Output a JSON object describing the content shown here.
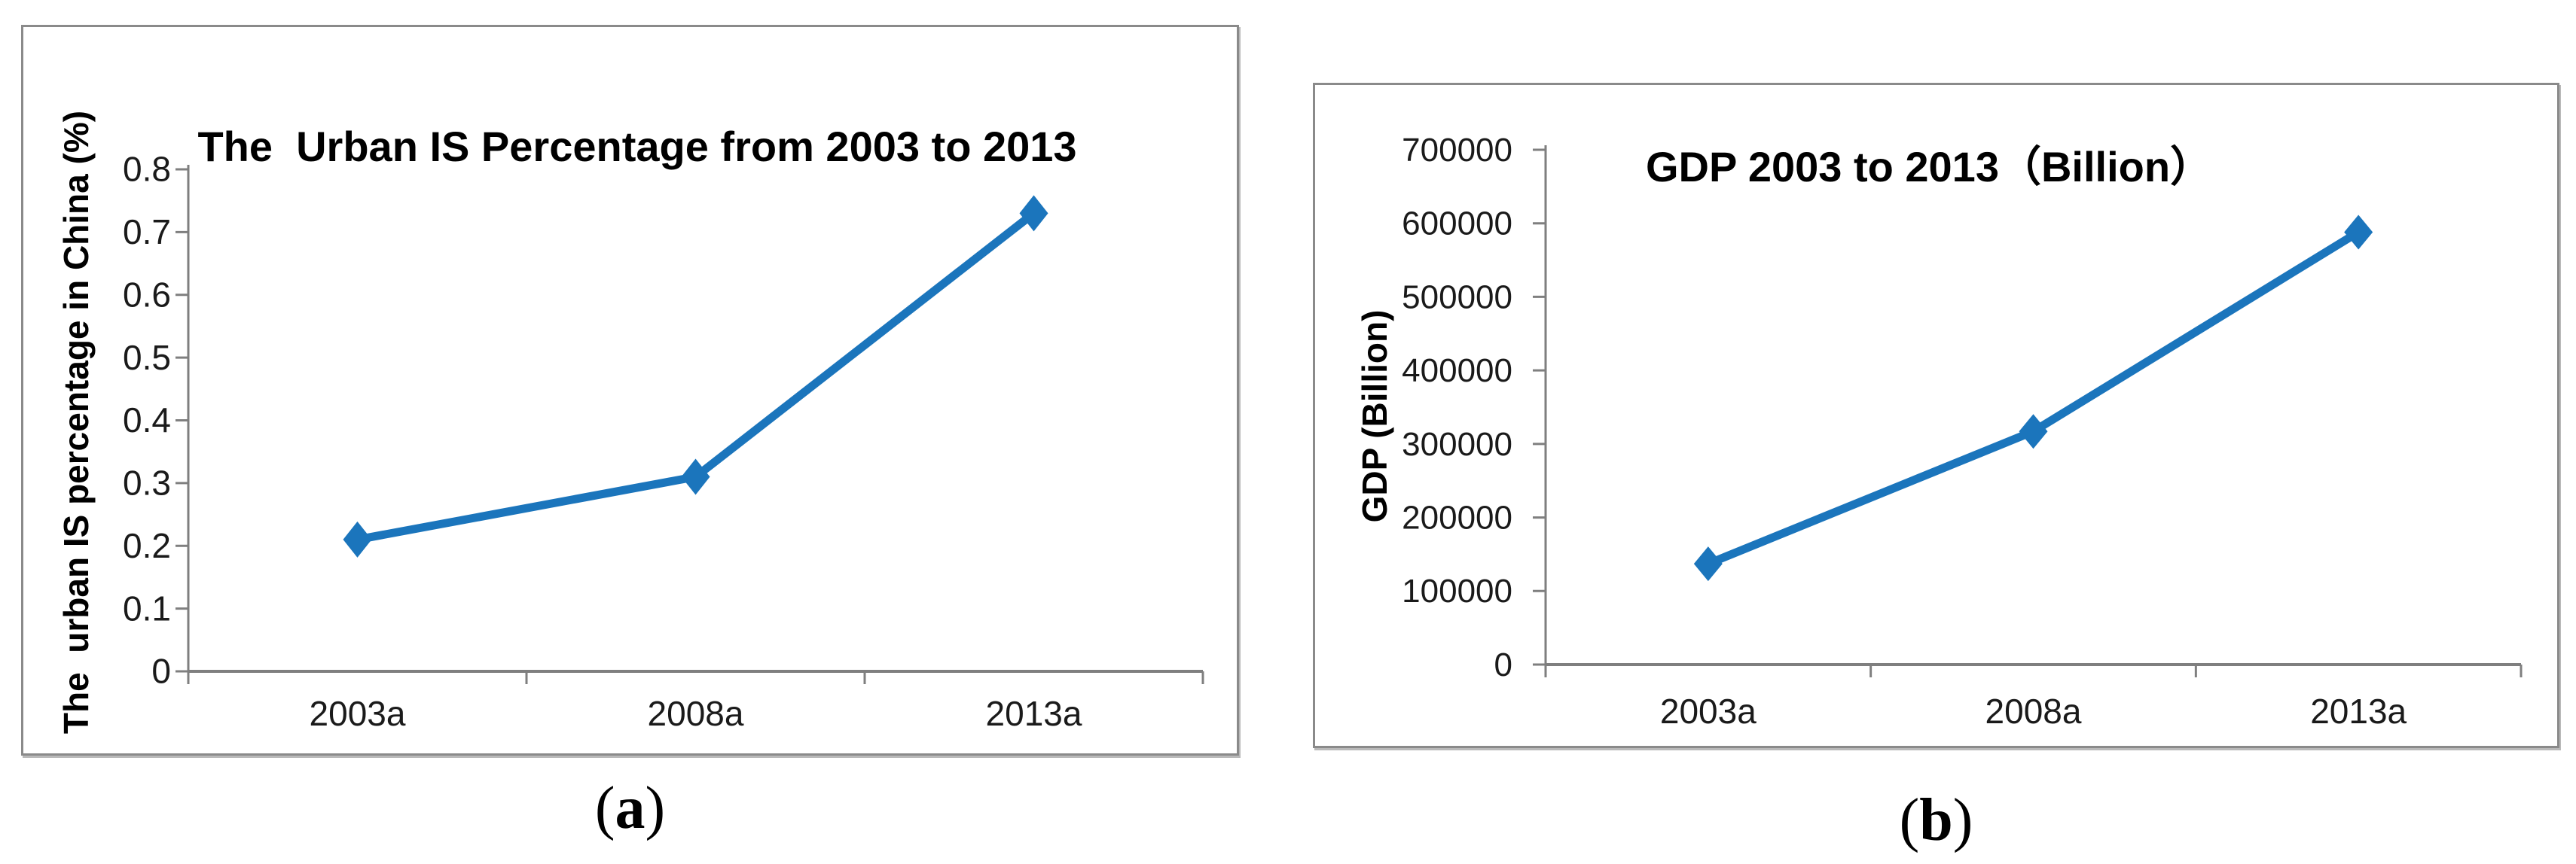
{
  "figure": {
    "panels": [
      {
        "id": "a",
        "caption": {
          "open": "(",
          "letter": "a",
          "close": ")"
        }
      },
      {
        "id": "b",
        "caption": {
          "open": "(",
          "letter": "b",
          "close": ")"
        }
      }
    ]
  },
  "chart_data": [
    {
      "type": "line",
      "panel": "a",
      "title": "The  Urban IS Percentage from 2003 to 2013",
      "xlabel": "",
      "ylabel": "The  urban IS percentage in China (%)",
      "categories": [
        "2003a",
        "2008a",
        "2013a"
      ],
      "values": [
        0.21,
        0.31,
        0.73
      ],
      "ylim": [
        0,
        0.8
      ],
      "yticks": [
        0,
        0.1,
        0.2,
        0.3,
        0.4,
        0.5,
        0.6,
        0.7,
        0.8
      ],
      "ytick_labels": [
        "0",
        "0.1",
        "0.2",
        "0.3",
        "0.4",
        "0.5",
        "0.6",
        "0.7",
        "0.8"
      ],
      "grid": false,
      "legend": "none",
      "marker": "diamond",
      "line_color": "#1b75bc",
      "axis_color": "#7f7f7f",
      "text_color": "#1a1a1a"
    },
    {
      "type": "line",
      "panel": "b",
      "title": "GDP 2003 to 2013（Billion）",
      "xlabel": "",
      "ylabel": "GDP (Billion)",
      "categories": [
        "2003a",
        "2008a",
        "2013a"
      ],
      "values": [
        137000,
        317000,
        588000
      ],
      "ylim": [
        0,
        700000
      ],
      "yticks": [
        0,
        100000,
        200000,
        300000,
        400000,
        500000,
        600000,
        700000
      ],
      "ytick_labels": [
        "0",
        "100000",
        "200000",
        "300000",
        "400000",
        "500000",
        "600000",
        "700000"
      ],
      "grid": false,
      "legend": "none",
      "marker": "diamond",
      "line_color": "#1b75bc",
      "axis_color": "#7f7f7f",
      "text_color": "#1a1a1a"
    }
  ]
}
